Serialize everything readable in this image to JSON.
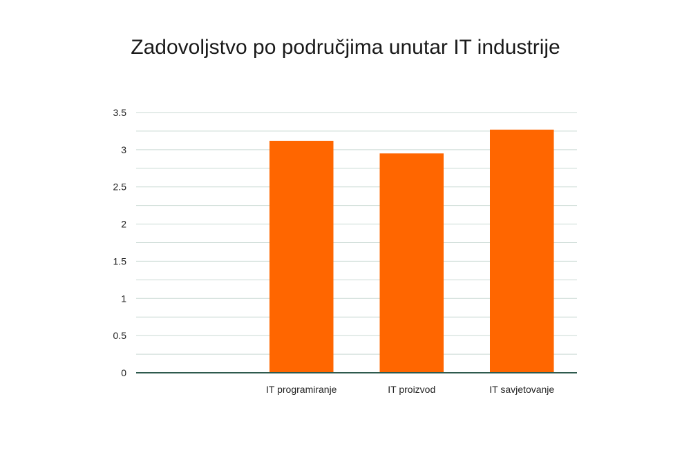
{
  "chart_data": {
    "type": "bar",
    "title": "Zadovoljstvo po područjima unutar IT industrije",
    "categories": [
      "",
      "IT programiranje",
      "IT proizvod",
      "IT savjetovanje"
    ],
    "values": [
      null,
      3.12,
      2.95,
      3.27
    ],
    "ylim": [
      0,
      3.5
    ],
    "yticks": [
      "0",
      "0.5",
      "1",
      "1.5",
      "2",
      "2.5",
      "3",
      "3.5"
    ],
    "minor_grid": true,
    "grid": true,
    "legend": "none",
    "xlabel": "",
    "ylabel": "",
    "colors": {
      "bar": "#ff6600",
      "grid": "#c9d9d3",
      "axis": "#2e5a4e"
    }
  }
}
